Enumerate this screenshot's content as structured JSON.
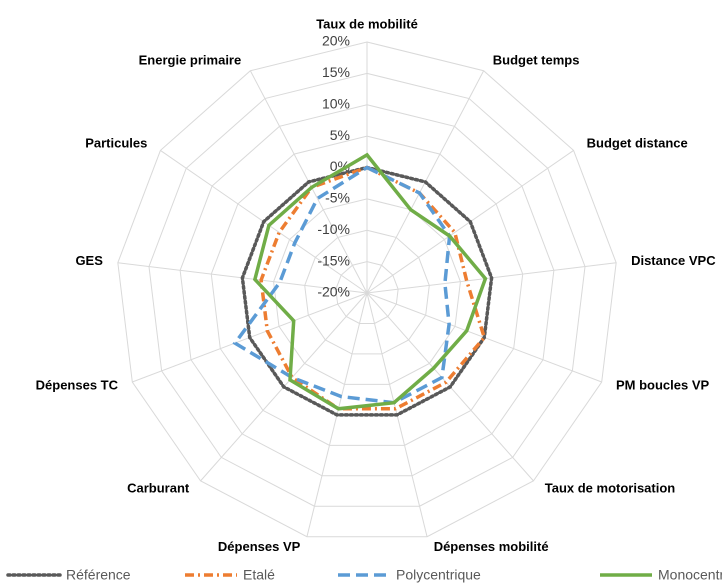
{
  "chart_data": {
    "type": "radar",
    "categories": [
      "Taux de mobilité",
      "Budget temps",
      "Budget distance",
      "Distance VPC",
      "PM boucles VP",
      "Taux de motorisation",
      "Dépenses mobilité",
      "Dépenses VP",
      "Carburant",
      "Dépenses TC",
      "GES",
      "Particules",
      "Energie primaire"
    ],
    "series": [
      {
        "name": "Référence",
        "color": "#595959",
        "dash": "dotted",
        "values": [
          0,
          0,
          0,
          0,
          0,
          0,
          0,
          0,
          0,
          0,
          0,
          0,
          0
        ]
      },
      {
        "name": "Etalé",
        "color": "#ed7d31",
        "dash": "dashdot",
        "values": [
          0,
          -2,
          -3,
          -4,
          0,
          -1,
          -1,
          -1,
          -2,
          -3,
          -3,
          -3,
          -1
        ]
      },
      {
        "name": "Polycentrique",
        "color": "#5b9bd5",
        "dash": "dashed",
        "values": [
          0,
          -2,
          -4,
          -7.5,
          -6,
          -2,
          -2,
          -3,
          -2,
          2.5,
          -6,
          -6,
          -3
        ]
      },
      {
        "name": "Monocentrique",
        "color": "#70ad47",
        "dash": "solid",
        "values": [
          2,
          -5,
          -4,
          -1,
          -3,
          -4,
          -2,
          -1,
          -1.5,
          -7.5,
          -2,
          -1,
          -1
        ]
      }
    ],
    "rlim": [
      -20,
      20
    ],
    "rticks": [
      {
        "value": -20,
        "label": "-20%"
      },
      {
        "value": -15,
        "label": "-15%"
      },
      {
        "value": -10,
        "label": "-10%"
      },
      {
        "value": -5,
        "label": "-5%"
      },
      {
        "value": 0,
        "label": "0%"
      },
      {
        "value": 5,
        "label": "5%"
      },
      {
        "value": 10,
        "label": "10%"
      },
      {
        "value": 15,
        "label": "15%"
      },
      {
        "value": 20,
        "label": "20%"
      }
    ],
    "legend": "bottom"
  }
}
